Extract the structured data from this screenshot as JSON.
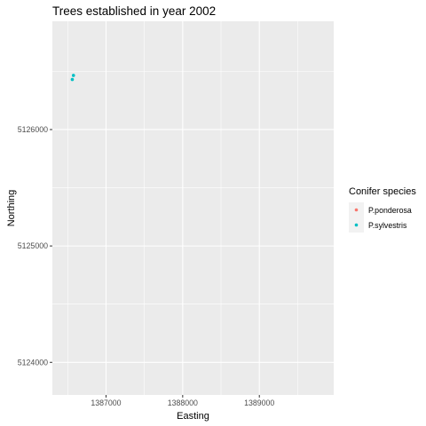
{
  "chart_data": {
    "type": "scatter",
    "title": "Trees established in year 2002",
    "xlabel": "Easting",
    "ylabel": "Northing",
    "xlim": [
      1386300,
      1389970
    ],
    "ylim": [
      5123720,
      5126930
    ],
    "x_ticks": [
      1387000,
      1388000,
      1389000
    ],
    "x_tick_labels": [
      "1387000",
      "1388000",
      "1389000"
    ],
    "y_ticks": [
      5124000,
      5125000,
      5126000
    ],
    "y_tick_labels": [
      "5124000",
      "5125000",
      "5126000"
    ],
    "grid": true,
    "legend": {
      "title": "Conifer species",
      "placement": "right",
      "entries": [
        "P.ponderosa",
        "P.sylvestris"
      ]
    },
    "series": [
      {
        "name": "P.ponderosa",
        "color": "#F8766D",
        "points": []
      },
      {
        "name": "P.sylvestris",
        "color": "#00BFC4",
        "points": [
          {
            "x": 1386575,
            "y": 5126465
          },
          {
            "x": 1386560,
            "y": 5126430
          }
        ]
      }
    ],
    "panel_background": "#EBEBEB"
  }
}
